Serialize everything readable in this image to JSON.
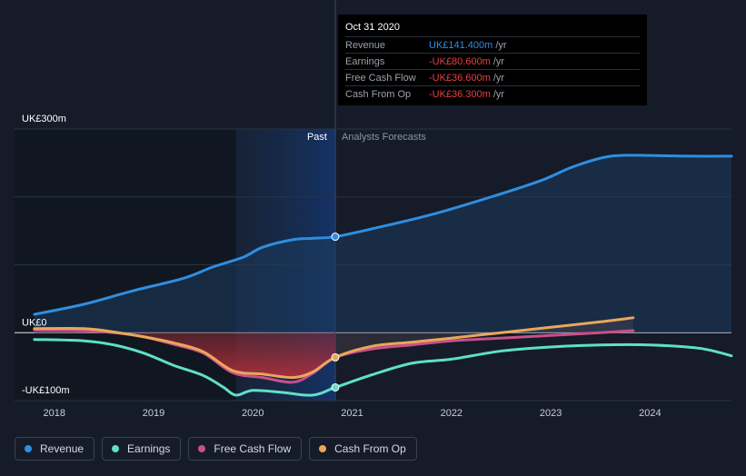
{
  "chart_data": {
    "type": "line",
    "title": "",
    "xlabel": "",
    "ylabel": "",
    "x_ticks": [
      "2018",
      "2019",
      "2020",
      "2021",
      "2022",
      "2023",
      "2024"
    ],
    "y_ticks": [
      "UK£300m",
      "UK£0",
      "-UK£100m"
    ],
    "xlim": [
      2017.6,
      2024.82
    ],
    "ylim": [
      -100,
      300
    ],
    "past_label": "Past",
    "forecast_label": "Analysts Forecasts",
    "past_shade_start": 2019.83,
    "divider_x": 2020.83,
    "series": [
      {
        "name": "Revenue",
        "color": "#2f8ee0",
        "x": [
          2017.8,
          2018.3,
          2018.8,
          2019.3,
          2019.6,
          2019.9,
          2020.1,
          2020.4,
          2020.6,
          2020.83,
          2021.2,
          2021.8,
          2022.4,
          2022.9,
          2023.2,
          2023.5,
          2023.7,
          2024.0,
          2024.4,
          2024.82
        ],
        "y": [
          27,
          42,
          62,
          80,
          97,
          111,
          126,
          137,
          139,
          141.4,
          153,
          174,
          200,
          224,
          243,
          257,
          261,
          261,
          260,
          260
        ]
      },
      {
        "name": "Earnings",
        "color": "#5ee0c8",
        "x": [
          2017.8,
          2018.3,
          2018.6,
          2018.9,
          2019.2,
          2019.5,
          2019.7,
          2019.83,
          2020.0,
          2020.3,
          2020.6,
          2020.83,
          2021.2,
          2021.6,
          2022.0,
          2022.5,
          2023.0,
          2023.5,
          2024.0,
          2024.5,
          2024.82
        ],
        "y": [
          -10,
          -12,
          -18,
          -30,
          -48,
          -63,
          -80,
          -92,
          -85,
          -88,
          -92,
          -80.6,
          -62,
          -45,
          -39,
          -27,
          -21,
          -18,
          -18,
          -23,
          -34
        ]
      },
      {
        "name": "Free Cash Flow",
        "color": "#c94f8b",
        "x": [
          2017.8,
          2018.3,
          2018.6,
          2018.9,
          2019.2,
          2019.5,
          2019.8,
          2020.1,
          2020.4,
          2020.6,
          2020.83,
          2021.2,
          2021.6,
          2022.0,
          2022.5,
          2023.0,
          2023.5,
          2023.83
        ],
        "y": [
          4,
          3,
          0,
          -6,
          -17,
          -30,
          -59,
          -66,
          -73,
          -60,
          -36.6,
          -24,
          -18,
          -12,
          -8,
          -4,
          0,
          3
        ]
      },
      {
        "name": "Cash From Op",
        "color": "#e8a85a",
        "x": [
          2017.8,
          2018.3,
          2018.6,
          2018.9,
          2019.2,
          2019.5,
          2019.8,
          2020.1,
          2020.4,
          2020.6,
          2020.83,
          2021.2,
          2021.6,
          2022.0,
          2022.5,
          2023.0,
          2023.5,
          2023.83
        ],
        "y": [
          6,
          6,
          1,
          -6,
          -15,
          -28,
          -56,
          -61,
          -66,
          -58,
          -36.3,
          -20,
          -14,
          -8,
          0,
          8,
          16,
          22
        ]
      }
    ],
    "highlight": {
      "x": 2020.83,
      "points": [
        141.4,
        -80.6,
        -36.3
      ]
    }
  },
  "tooltip": {
    "date": "Oct 31 2020",
    "rows": [
      {
        "label": "Revenue",
        "value": "UK£141.400m",
        "unit": "/yr",
        "color": "#2f8ee0"
      },
      {
        "label": "Earnings",
        "value": "-UK£80.600m",
        "unit": "/yr",
        "color": "#e8403f"
      },
      {
        "label": "Free Cash Flow",
        "value": "-UK£36.600m",
        "unit": "/yr",
        "color": "#e8403f"
      },
      {
        "label": "Cash From Op",
        "value": "-UK£36.300m",
        "unit": "/yr",
        "color": "#e8403f"
      }
    ]
  },
  "legend": [
    {
      "label": "Revenue",
      "color": "#2f8ee0"
    },
    {
      "label": "Earnings",
      "color": "#5ee0c8"
    },
    {
      "label": "Free Cash Flow",
      "color": "#c94f8b"
    },
    {
      "label": "Cash From Op",
      "color": "#e8a85a"
    }
  ]
}
